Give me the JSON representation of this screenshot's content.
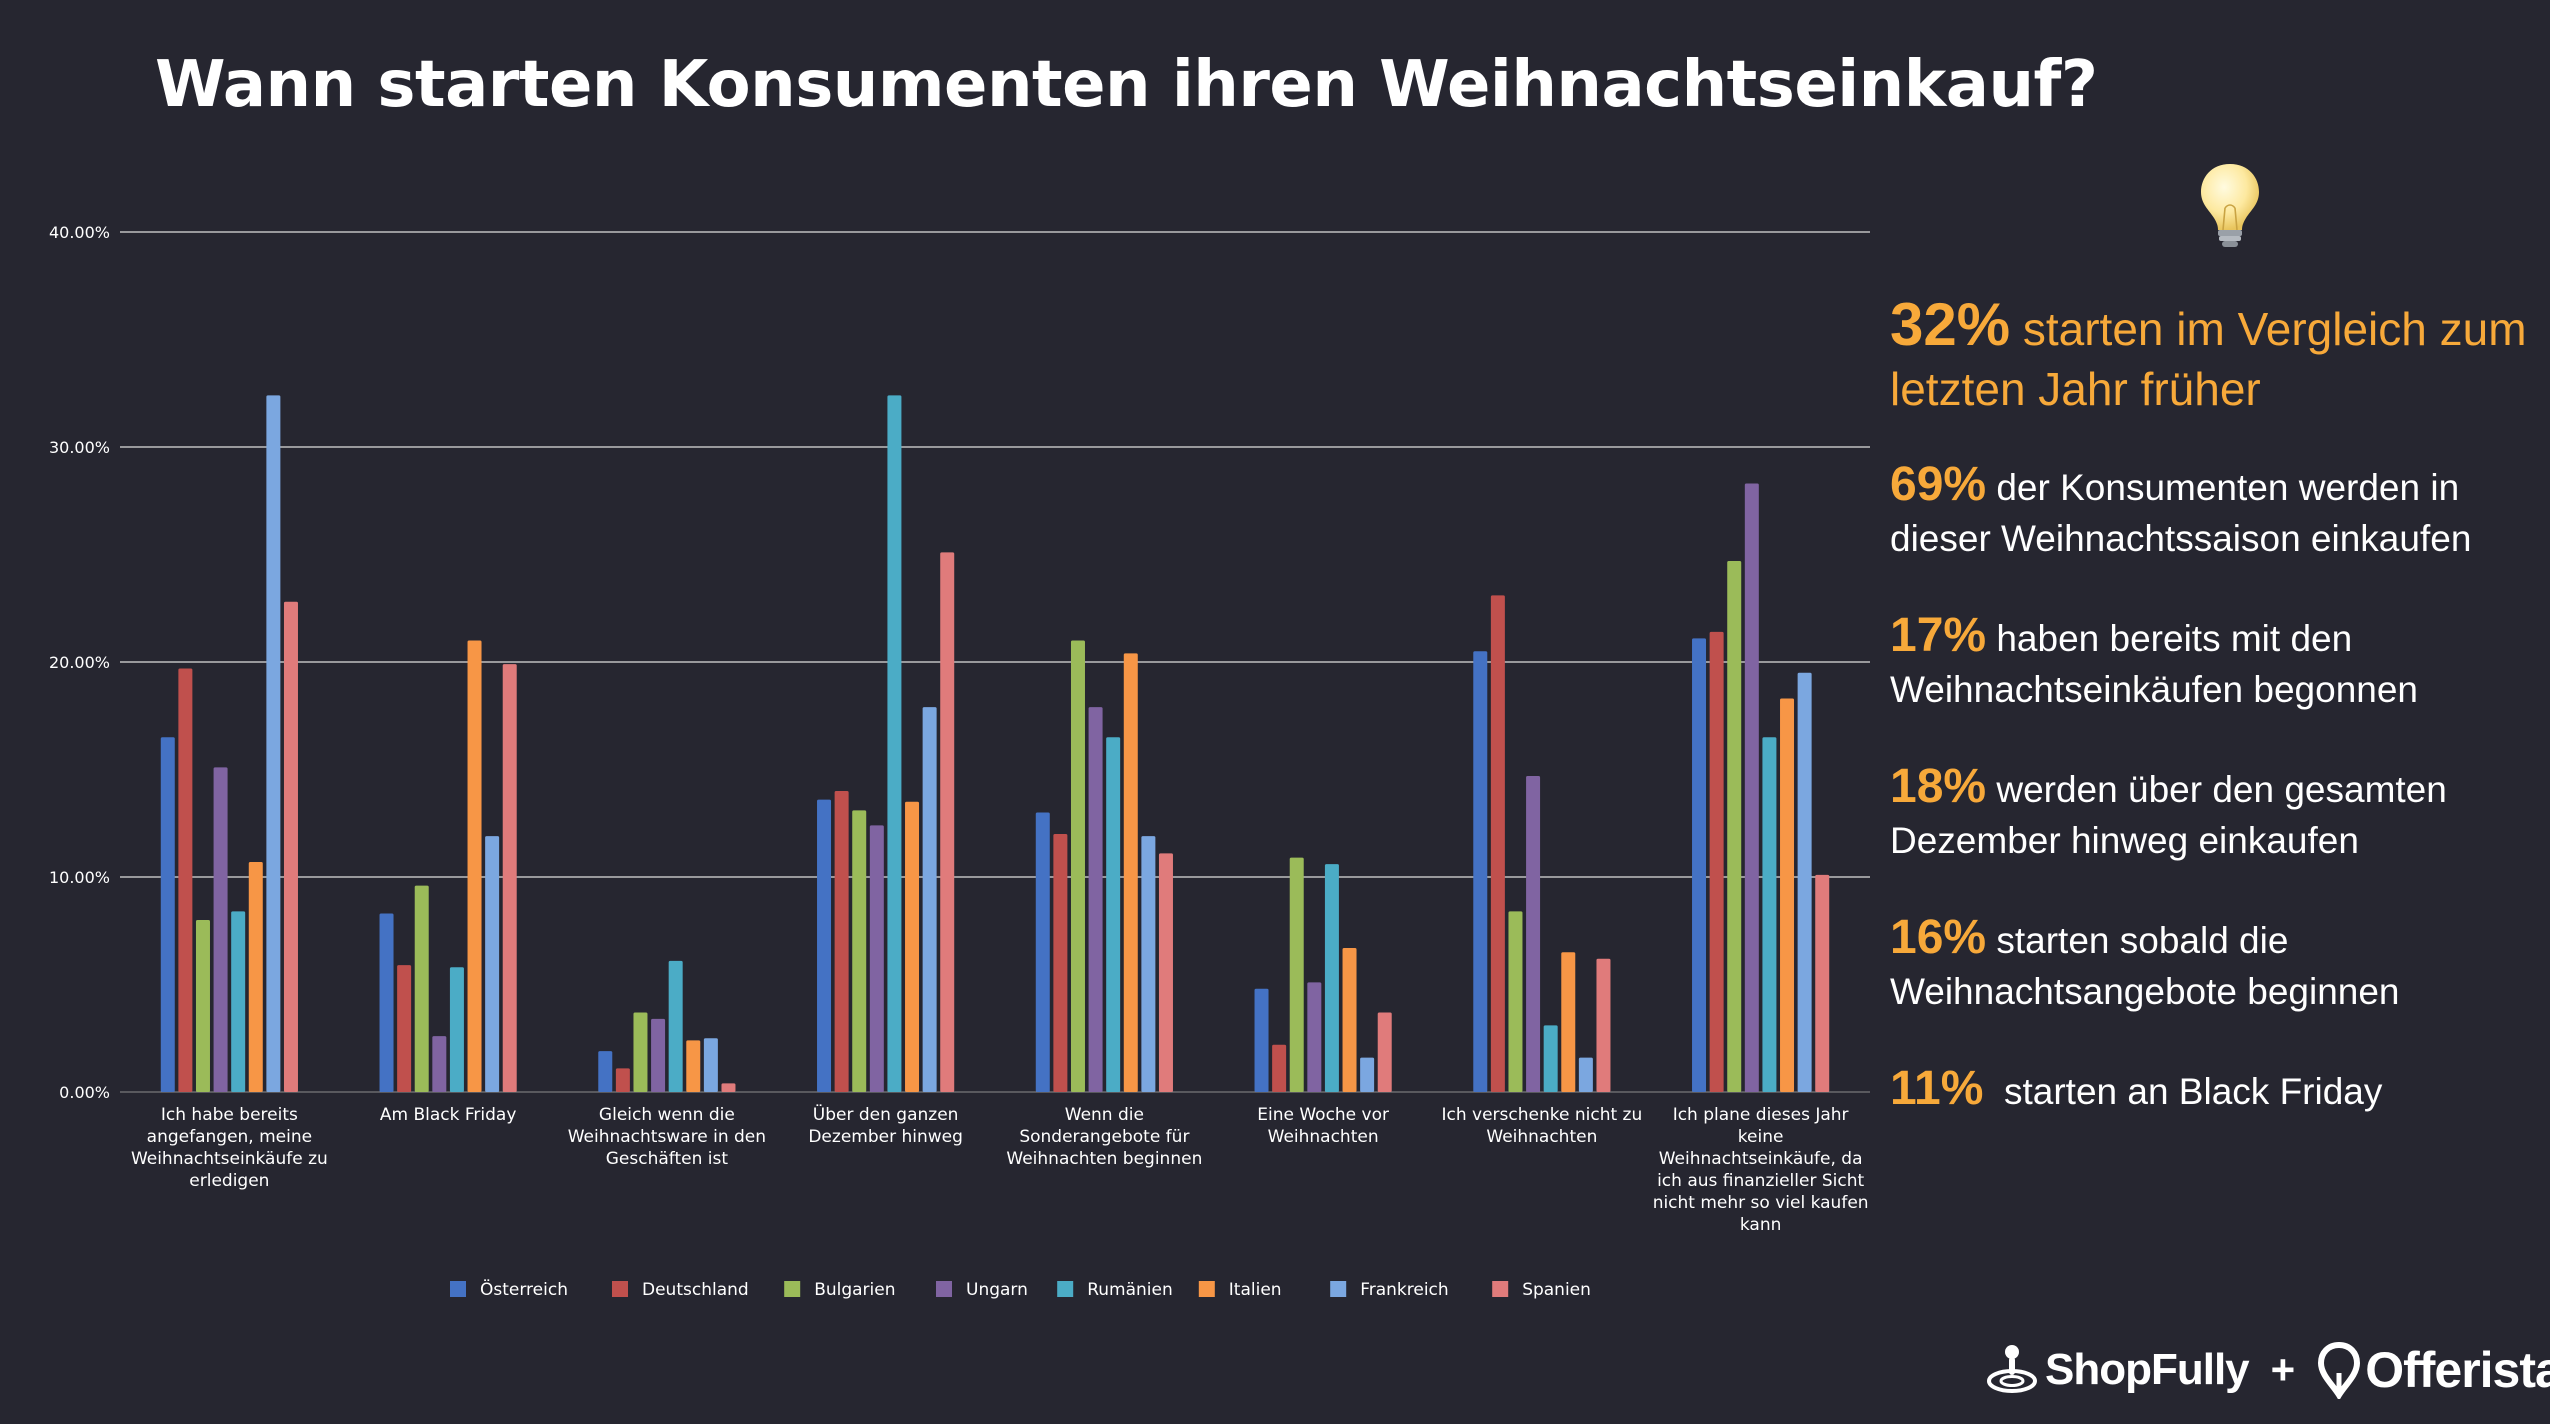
{
  "title": "Wann starten Konsumenten ihren Weihnachtseinkauf?",
  "colors": {
    "background": "#262630",
    "accent": "#f7a93a",
    "gridline": "#bfbfbf",
    "series": [
      "#4472c4",
      "#c0504d",
      "#9bbb59",
      "#8064a2",
      "#4bacc6",
      "#f79646",
      "#7ba7e0",
      "#e07b7b"
    ]
  },
  "icons": {
    "idea": "lightbulb-icon"
  },
  "facts": [
    {
      "pct": "32%",
      "text": " starten im Vergleich zum letzten Jahr früher"
    },
    {
      "pct": "69%",
      "text": " der Konsumenten werden in dieser Weihnachtssaison einkaufen"
    },
    {
      "pct": "17%",
      "text": " haben bereits mit den Weihnachtseinkäufen begonnen"
    },
    {
      "pct": "18%",
      "text": " werden über den gesamten Dezember hinweg einkaufen"
    },
    {
      "pct": "16%",
      "text": " starten sobald die Weihnachtsangebote beginnen"
    },
    {
      "pct": "11%",
      "text": "  starten an Black Friday"
    }
  ],
  "logos": {
    "brand1": "ShopFully",
    "plus": "+",
    "brand2": "Offerista"
  },
  "chart_data": {
    "type": "bar",
    "ylim": [
      0,
      40
    ],
    "yticks": [
      "0.00%",
      "10.00%",
      "20.00%",
      "30.00%",
      "40.00%"
    ],
    "grid": true,
    "legend_position": "bottom",
    "categories": [
      [
        "Ich habe bereits",
        "angefangen, meine",
        "Weihnachtseinkäufe zu",
        "erledigen"
      ],
      [
        "Am Black Friday"
      ],
      [
        "Gleich wenn die",
        "Weihnachtsware in den",
        "Geschäften ist"
      ],
      [
        "Über den ganzen",
        "Dezember hinweg"
      ],
      [
        "Wenn die",
        "Sonderangebote für",
        "Weihnachten beginnen"
      ],
      [
        "Eine Woche vor",
        "Weihnachten"
      ],
      [
        "Ich verschenke nicht zu",
        "Weihnachten"
      ],
      [
        "Ich plane dieses Jahr",
        "keine",
        "Weihnachtseinkäufe, da",
        "ich aus finanzieller Sicht",
        "nicht mehr so viel kaufen",
        "kann"
      ]
    ],
    "series": [
      {
        "name": "Österreich",
        "values": [
          16.5,
          8.3,
          1.9,
          13.6,
          13.0,
          4.8,
          20.5,
          21.1
        ]
      },
      {
        "name": "Deutschland",
        "values": [
          19.7,
          5.9,
          1.1,
          14.0,
          12.0,
          2.2,
          23.1,
          21.4
        ]
      },
      {
        "name": "Bulgarien",
        "values": [
          8.0,
          9.6,
          3.7,
          13.1,
          21.0,
          10.9,
          8.4,
          24.7
        ]
      },
      {
        "name": "Ungarn",
        "values": [
          15.1,
          2.6,
          3.4,
          12.4,
          17.9,
          5.1,
          14.7,
          28.3
        ]
      },
      {
        "name": "Rumänien",
        "values": [
          8.4,
          5.8,
          6.1,
          32.4,
          16.5,
          10.6,
          3.1,
          16.5
        ]
      },
      {
        "name": "Italien",
        "values": [
          10.7,
          21.0,
          2.4,
          13.5,
          20.4,
          6.7,
          6.5,
          18.3
        ]
      },
      {
        "name": "Frankreich",
        "values": [
          32.4,
          11.9,
          2.5,
          17.9,
          11.9,
          1.6,
          1.6,
          19.5
        ]
      },
      {
        "name": "Spanien",
        "values": [
          22.8,
          19.9,
          0.4,
          25.1,
          11.1,
          3.7,
          6.2,
          10.1
        ]
      }
    ]
  }
}
